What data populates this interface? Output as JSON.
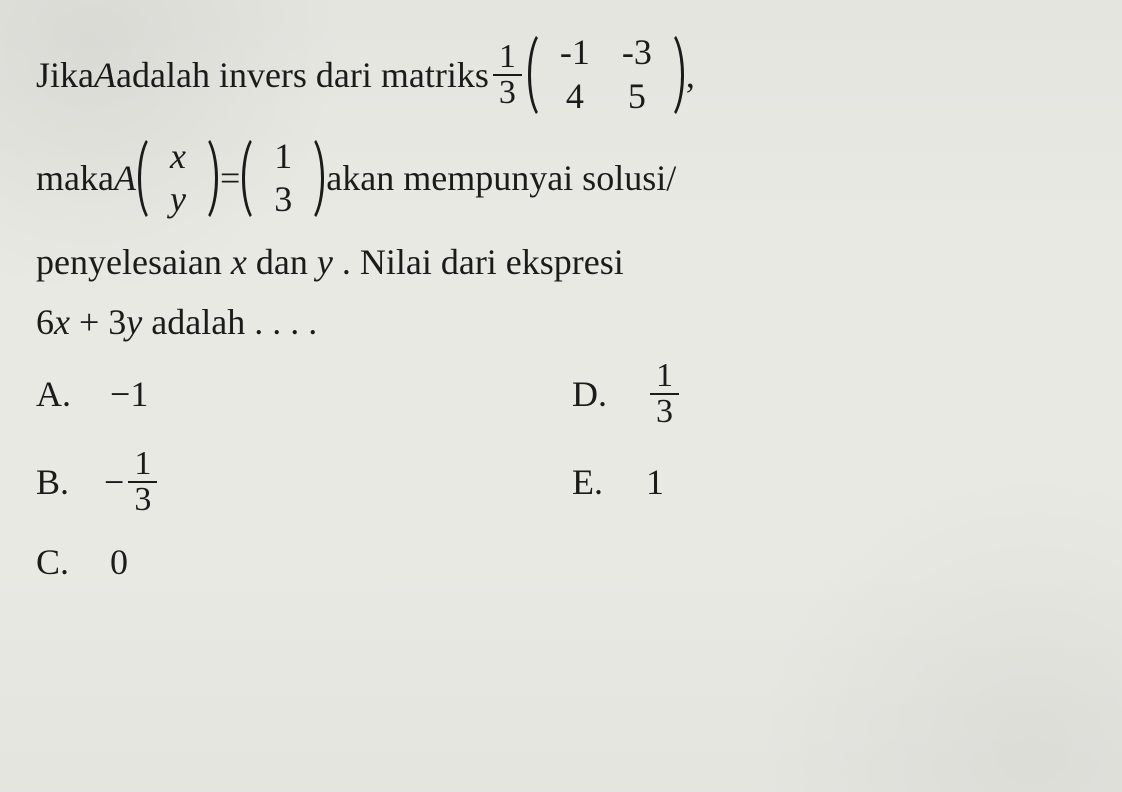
{
  "colors": {
    "background": "#e9e9e4",
    "text": "#1b1b1b",
    "rule": "#1b1b1b"
  },
  "typography": {
    "family": "Times New Roman",
    "body_fontsize_pt": 27,
    "cell_fontsize_pt": 27,
    "frac_fontsize_pt": 26
  },
  "problem": {
    "line1_pre": "Jika ",
    "line1_var": "A",
    "line1_mid": " adalah invers dari matriks ",
    "scalar": {
      "num": "1",
      "den": "3"
    },
    "matrixM": {
      "type": "matrix",
      "rows": 2,
      "cols": 2,
      "cells": [
        [
          "-1",
          "-3"
        ],
        [
          "4",
          "5"
        ]
      ]
    },
    "line1_post": ",",
    "line2_pre": "maka ",
    "line2_A": "A",
    "vec_xy": {
      "type": "matrix",
      "rows": 2,
      "cols": 1,
      "cells": [
        [
          "x"
        ],
        [
          "y"
        ]
      ]
    },
    "line2_eq": " = ",
    "vec_13": {
      "type": "matrix",
      "rows": 2,
      "cols": 1,
      "cells": [
        [
          "1"
        ],
        [
          "3"
        ]
      ]
    },
    "line2_post": " akan mempunyai solusi/",
    "line3": "penyelesaian ",
    "line3_x": "x",
    "line3_mid": " dan ",
    "line3_y": "y",
    "line3_end": ". Nilai dari ekspresi",
    "line4_a": "6",
    "line4_x": "x",
    "line4_plus": " + 3",
    "line4_y": "y",
    "line4_end": " adalah . . . ."
  },
  "options": {
    "A": {
      "label": "A.",
      "value": "-1"
    },
    "B": {
      "label": "B.",
      "value_prefix": "-",
      "frac": {
        "num": "1",
        "den": "3"
      }
    },
    "C": {
      "label": "C.",
      "value": "0"
    },
    "D": {
      "label": "D.",
      "frac": {
        "num": "1",
        "den": "3"
      }
    },
    "E": {
      "label": "E.",
      "value": "1"
    }
  }
}
